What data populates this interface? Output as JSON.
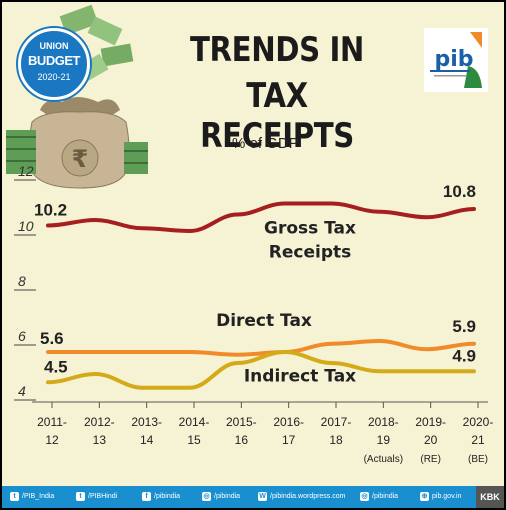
{
  "header": {
    "title_line1": "TRENDS IN",
    "title_line2": "TAX RECEIPTS",
    "unit": "% of GDP"
  },
  "badge": {
    "line1": "UNION",
    "line2": "BUDGET",
    "line3": "2020-21"
  },
  "logo": {
    "text": "pib"
  },
  "colors": {
    "background": "#f6f2d4",
    "gross": "#a71e1e",
    "direct": "#f08a2a",
    "indirect": "#d4aa18",
    "footer": "#1a8fd0"
  },
  "chart_data": {
    "type": "line",
    "ylim": [
      4,
      12
    ],
    "y_ticks": [
      "4",
      "6",
      "8",
      "10",
      "12"
    ],
    "categories": [
      "2011-12",
      "2012-13",
      "2013-14",
      "2014-15",
      "2015-16",
      "2016-17",
      "2017-18",
      "2018-19 (Actuals)",
      "2019-20 (RE)",
      "2020-21 (BE)"
    ],
    "x_labels": [
      [
        "2011-",
        "12",
        ""
      ],
      [
        "2012-",
        "13",
        ""
      ],
      [
        "2013-",
        "14",
        ""
      ],
      [
        "2014-",
        "15",
        ""
      ],
      [
        "2015-",
        "16",
        ""
      ],
      [
        "2016-",
        "17",
        ""
      ],
      [
        "2017-",
        "18",
        ""
      ],
      [
        "2018-",
        "19",
        "(Actuals)"
      ],
      [
        "2019-",
        "20",
        "(RE)"
      ],
      [
        "2020-",
        "21",
        "(BE)"
      ]
    ],
    "grid": false,
    "series": [
      {
        "name": "Gross Tax Receipts",
        "values": [
          10.2,
          10.4,
          10.1,
          10.0,
          10.6,
          11.0,
          11.0,
          10.7,
          10.5,
          10.8
        ]
      },
      {
        "name": "Direct Tax",
        "values": [
          5.6,
          5.6,
          5.6,
          5.6,
          5.5,
          5.6,
          5.9,
          6.0,
          5.7,
          5.9
        ]
      },
      {
        "name": "Indirect Tax",
        "values": [
          4.5,
          4.8,
          4.3,
          4.3,
          5.2,
          5.6,
          5.2,
          4.9,
          4.9,
          4.9
        ]
      }
    ],
    "labels": {
      "gross_first": "10.2",
      "gross_last": "10.8",
      "direct_first": "5.6",
      "direct_last": "5.9",
      "indirect_first": "4.5",
      "indirect_last": "4.9",
      "gross_name_line1": "Gross Tax",
      "gross_name_line2": "Receipts",
      "direct_name": "Direct Tax",
      "indirect_name": "Indirect Tax"
    }
  },
  "footer": {
    "items": [
      {
        "icon": "twitter-icon",
        "text": "/PIB_India"
      },
      {
        "icon": "twitter-icon",
        "text": "/PIBHindi"
      },
      {
        "icon": "facebook-icon",
        "text": "/pibindia"
      },
      {
        "icon": "instagram-icon",
        "text": "/pibindia"
      },
      {
        "icon": "wordpress-icon",
        "text": "/pibindia.wordpress.com"
      },
      {
        "icon": "instagram-icon",
        "text": "/pibindia"
      },
      {
        "icon": "globe-icon",
        "text": "pib.gov.in"
      }
    ],
    "tag": "KBK"
  }
}
